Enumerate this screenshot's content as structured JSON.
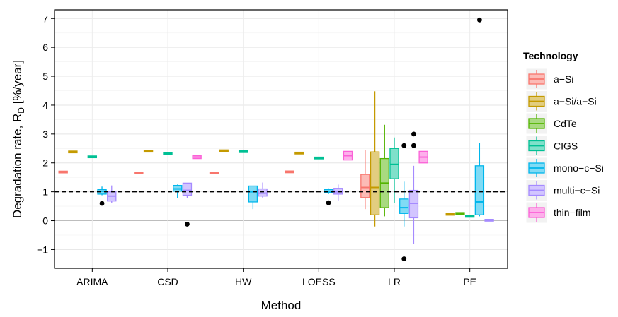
{
  "chart_data": {
    "type": "boxplot",
    "xlabel": "Method",
    "ylabel": "Degradation rate, R",
    "ylabel_sub": "D",
    "ylabel_unit": " [%/year]",
    "ylim": [
      -1.65,
      7.3
    ],
    "yticks": [
      -1,
      0,
      1,
      2,
      3,
      4,
      5,
      6,
      7
    ],
    "grid": true,
    "reference_line": 1,
    "categories": [
      "ARIMA",
      "CSD",
      "HW",
      "LOESS",
      "LR",
      "PE"
    ],
    "legend": {
      "title": "Technology",
      "position": "right",
      "entries": [
        "a−Si",
        "a−Si/a−Si",
        "CdTe",
        "CIGS",
        "mono−c−Si",
        "multi−c−Si",
        "thin−film"
      ]
    },
    "series": [
      {
        "name": "a−Si",
        "color": "#F8766D",
        "boxes": [
          {
            "category": "ARIMA",
            "lo": 1.68,
            "q1": 1.68,
            "median": 1.68,
            "q3": 1.69,
            "hi": 1.69,
            "outliers": []
          },
          {
            "category": "CSD",
            "lo": 1.64,
            "q1": 1.64,
            "median": 1.65,
            "q3": 1.66,
            "hi": 1.66,
            "outliers": []
          },
          {
            "category": "HW",
            "lo": 1.64,
            "q1": 1.64,
            "median": 1.65,
            "q3": 1.66,
            "hi": 1.66,
            "outliers": []
          },
          {
            "category": "LOESS",
            "lo": 1.68,
            "q1": 1.68,
            "median": 1.69,
            "q3": 1.7,
            "hi": 1.7,
            "outliers": []
          },
          {
            "category": "LR",
            "lo": 0.4,
            "q1": 0.8,
            "median": 1.15,
            "q3": 1.6,
            "hi": 2.45,
            "outliers": []
          }
        ]
      },
      {
        "name": "a−Si/a−Si",
        "color": "#C49A00",
        "boxes": [
          {
            "category": "ARIMA",
            "lo": 2.37,
            "q1": 2.37,
            "median": 2.38,
            "q3": 2.39,
            "hi": 2.39,
            "outliers": []
          },
          {
            "category": "CSD",
            "lo": 2.39,
            "q1": 2.39,
            "median": 2.4,
            "q3": 2.42,
            "hi": 2.42,
            "outliers": []
          },
          {
            "category": "HW",
            "lo": 2.41,
            "q1": 2.41,
            "median": 2.42,
            "q3": 2.43,
            "hi": 2.43,
            "outliers": []
          },
          {
            "category": "LOESS",
            "lo": 2.33,
            "q1": 2.33,
            "median": 2.34,
            "q3": 2.35,
            "hi": 2.35,
            "outliers": []
          },
          {
            "category": "LR",
            "lo": -0.2,
            "q1": 0.2,
            "median": 1.15,
            "q3": 2.38,
            "hi": 4.48,
            "outliers": []
          },
          {
            "category": "PE",
            "lo": 0.21,
            "q1": 0.21,
            "median": 0.22,
            "q3": 0.23,
            "hi": 0.23,
            "outliers": []
          }
        ]
      },
      {
        "name": "CdTe",
        "color": "#53B400",
        "boxes": [
          {
            "category": "LR",
            "lo": 0.15,
            "q1": 0.45,
            "median": 1.3,
            "q3": 2.15,
            "hi": 3.32,
            "outliers": []
          },
          {
            "category": "PE",
            "lo": 0.24,
            "q1": 0.24,
            "median": 0.25,
            "q3": 0.26,
            "hi": 0.26,
            "outliers": []
          }
        ]
      },
      {
        "name": "CIGS",
        "color": "#00C094",
        "boxes": [
          {
            "category": "ARIMA",
            "lo": 2.2,
            "q1": 2.2,
            "median": 2.21,
            "q3": 2.22,
            "hi": 2.22,
            "outliers": []
          },
          {
            "category": "CSD",
            "lo": 2.32,
            "q1": 2.32,
            "median": 2.33,
            "q3": 2.34,
            "hi": 2.34,
            "outliers": []
          },
          {
            "category": "HW",
            "lo": 2.38,
            "q1": 2.38,
            "median": 2.39,
            "q3": 2.4,
            "hi": 2.4,
            "outliers": []
          },
          {
            "category": "LOESS",
            "lo": 2.16,
            "q1": 2.16,
            "median": 2.17,
            "q3": 2.18,
            "hi": 2.18,
            "outliers": []
          },
          {
            "category": "LR",
            "lo": 0.6,
            "q1": 1.45,
            "median": 1.95,
            "q3": 2.5,
            "hi": 2.88,
            "outliers": []
          },
          {
            "category": "PE",
            "lo": 0.14,
            "q1": 0.14,
            "median": 0.15,
            "q3": 0.16,
            "hi": 0.16,
            "outliers": []
          }
        ]
      },
      {
        "name": "mono−c−Si",
        "color": "#00B6EB",
        "boxes": [
          {
            "category": "ARIMA",
            "lo": 0.88,
            "q1": 0.92,
            "median": 1.02,
            "q3": 1.08,
            "hi": 1.18,
            "outliers": [
              0.6
            ]
          },
          {
            "category": "CSD",
            "lo": 0.78,
            "q1": 1.02,
            "median": 1.1,
            "q3": 1.22,
            "hi": 1.25,
            "outliers": []
          },
          {
            "category": "HW",
            "lo": 0.4,
            "q1": 0.65,
            "median": 1.0,
            "q3": 1.2,
            "hi": 1.2,
            "outliers": []
          },
          {
            "category": "LOESS",
            "lo": 0.92,
            "q1": 0.98,
            "median": 1.02,
            "q3": 1.08,
            "hi": 1.12,
            "outliers": [
              0.62
            ]
          },
          {
            "category": "LR",
            "lo": -0.2,
            "q1": 0.25,
            "median": 0.45,
            "q3": 0.75,
            "hi": 1.35,
            "outliers": [
              2.6,
              -1.32
            ]
          },
          {
            "category": "PE",
            "lo": 0.15,
            "q1": 0.2,
            "median": 0.65,
            "q3": 1.9,
            "hi": 2.68,
            "outliers": [
              6.95
            ]
          }
        ]
      },
      {
        "name": "multi−c−Si",
        "color": "#A58AFF",
        "boxes": [
          {
            "category": "ARIMA",
            "lo": 0.6,
            "q1": 0.68,
            "median": 0.85,
            "q3": 1.0,
            "hi": 1.22,
            "outliers": []
          },
          {
            "category": "CSD",
            "lo": 0.78,
            "q1": 0.88,
            "median": 1.05,
            "q3": 1.3,
            "hi": 1.3,
            "outliers": [
              -0.12
            ]
          },
          {
            "category": "HW",
            "lo": 0.78,
            "q1": 0.85,
            "median": 0.95,
            "q3": 1.1,
            "hi": 1.32,
            "outliers": []
          },
          {
            "category": "LOESS",
            "lo": 0.7,
            "q1": 0.92,
            "median": 1.0,
            "q3": 1.12,
            "hi": 1.25,
            "outliers": []
          },
          {
            "category": "LR",
            "lo": -0.8,
            "q1": 0.1,
            "median": 0.6,
            "q3": 1.05,
            "hi": 1.9,
            "outliers": [
              2.6,
              3.0
            ]
          },
          {
            "category": "PE",
            "lo": -0.02,
            "q1": -0.01,
            "median": 0.02,
            "q3": 0.04,
            "hi": 0.04,
            "outliers": []
          }
        ]
      },
      {
        "name": "thin−film",
        "color": "#FB61D7",
        "boxes": [
          {
            "category": "CSD",
            "lo": 2.15,
            "q1": 2.15,
            "median": 2.2,
            "q3": 2.25,
            "hi": 2.25,
            "outliers": []
          },
          {
            "category": "LOESS",
            "lo": 2.1,
            "q1": 2.1,
            "median": 2.25,
            "q3": 2.4,
            "hi": 2.4,
            "outliers": []
          },
          {
            "category": "LR",
            "lo": 2.0,
            "q1": 2.0,
            "median": 2.2,
            "q3": 2.4,
            "hi": 2.4,
            "outliers": []
          }
        ]
      }
    ]
  }
}
